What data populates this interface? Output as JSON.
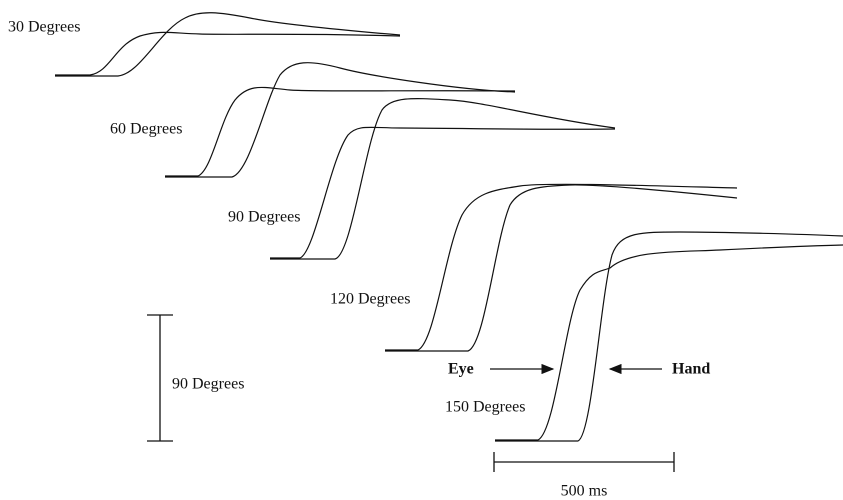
{
  "traces": [
    {
      "label": "30 Degrees"
    },
    {
      "label": "60 Degrees"
    },
    {
      "label": "90 Degrees"
    },
    {
      "label": "120 Degrees"
    },
    {
      "label": "150 Degrees"
    }
  ],
  "scale_bars": {
    "vertical": "90 Degrees",
    "horizontal": "500 ms"
  },
  "annotations": {
    "eye": "Eye",
    "hand": "Hand"
  }
}
